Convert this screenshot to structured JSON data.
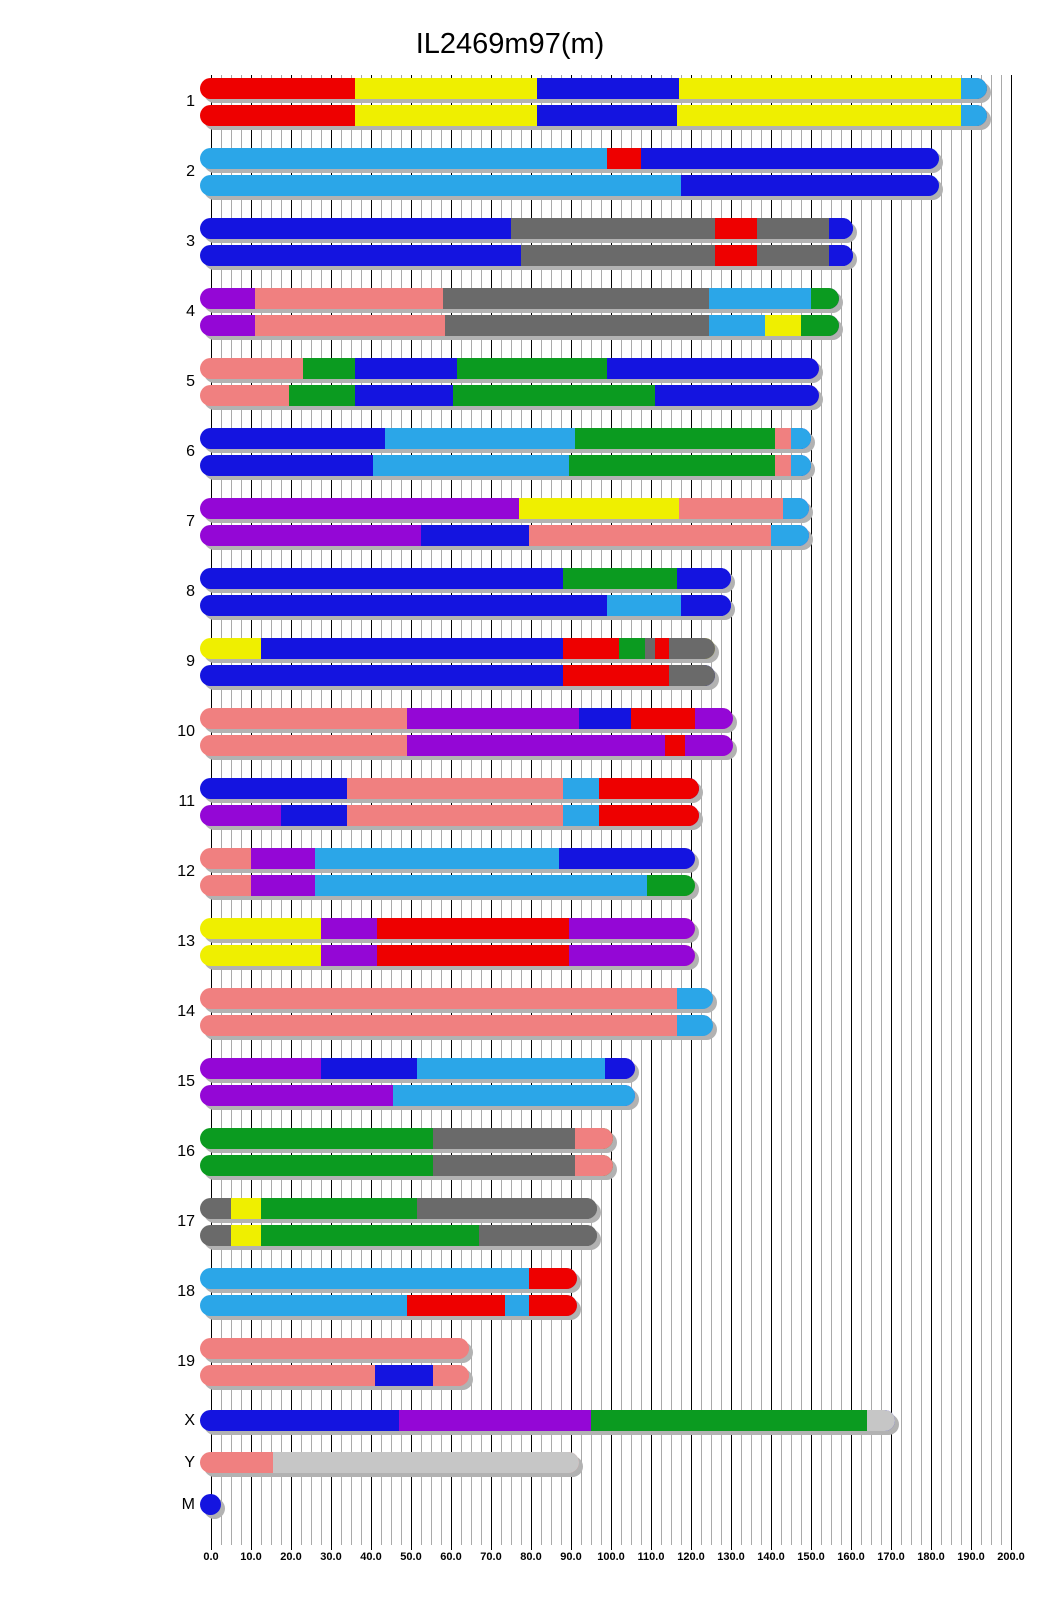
{
  "chart_data": {
    "type": "bar",
    "subtype": "chromosome-haplotype-painting",
    "title": "IL2469m97(m)",
    "xlabel": "",
    "ylabel": "",
    "unit": "Mb",
    "legend": "none",
    "grid": "on",
    "axis": {
      "min": 0,
      "max": 200,
      "major_step": 10,
      "minor_step": 2.5,
      "tick_labels": [
        "0.0",
        "10.0",
        "20.0",
        "30.0",
        "40.0",
        "50.0",
        "60.0",
        "70.0",
        "80.0",
        "90.0",
        "100.0",
        "110.0",
        "120.0",
        "130.0",
        "140.0",
        "150.0",
        "160.0",
        "170.0",
        "180.0",
        "190.0",
        "200.0"
      ]
    },
    "colors": {
      "red": "#EE0000",
      "yellow": "#EFEF00",
      "blue": "#1414E0",
      "lightblue": "#2BA6E8",
      "pink": "#F08080",
      "green": "#0B9B20",
      "gray": "#6A6A6A",
      "lightgray": "#C6C6C6",
      "purple": "#9407D6"
    },
    "chromosomes": [
      {
        "name": "1",
        "haplotypes": [
          [
            {
              "c": "red",
              "s": 0,
              "e": 36
            },
            {
              "c": "yellow",
              "s": 36,
              "e": 81.5
            },
            {
              "c": "blue",
              "s": 81.5,
              "e": 117
            },
            {
              "c": "yellow",
              "s": 117,
              "e": 187.5
            },
            {
              "c": "lightblue",
              "s": 187.5,
              "e": 194
            }
          ],
          [
            {
              "c": "red",
              "s": 0,
              "e": 36
            },
            {
              "c": "yellow",
              "s": 36,
              "e": 81.5
            },
            {
              "c": "blue",
              "s": 81.5,
              "e": 116.5
            },
            {
              "c": "yellow",
              "s": 116.5,
              "e": 187.5
            },
            {
              "c": "lightblue",
              "s": 187.5,
              "e": 194
            }
          ]
        ]
      },
      {
        "name": "2",
        "haplotypes": [
          [
            {
              "c": "lightblue",
              "s": 0,
              "e": 99
            },
            {
              "c": "red",
              "s": 99,
              "e": 107.5
            },
            {
              "c": "blue",
              "s": 107.5,
              "e": 182
            }
          ],
          [
            {
              "c": "lightblue",
              "s": 0,
              "e": 117.5
            },
            {
              "c": "blue",
              "s": 117.5,
              "e": 182
            }
          ]
        ]
      },
      {
        "name": "3",
        "haplotypes": [
          [
            {
              "c": "blue",
              "s": 0,
              "e": 75
            },
            {
              "c": "gray",
              "s": 75,
              "e": 126
            },
            {
              "c": "red",
              "s": 126,
              "e": 136.5
            },
            {
              "c": "gray",
              "s": 136.5,
              "e": 154.5
            },
            {
              "c": "blue",
              "s": 154.5,
              "e": 160.5
            }
          ],
          [
            {
              "c": "blue",
              "s": 0,
              "e": 77.5
            },
            {
              "c": "gray",
              "s": 77.5,
              "e": 126
            },
            {
              "c": "red",
              "s": 126,
              "e": 136.5
            },
            {
              "c": "gray",
              "s": 136.5,
              "e": 154.5
            },
            {
              "c": "blue",
              "s": 154.5,
              "e": 160.5
            }
          ]
        ]
      },
      {
        "name": "4",
        "haplotypes": [
          [
            {
              "c": "purple",
              "s": 0,
              "e": 11
            },
            {
              "c": "pink",
              "s": 11,
              "e": 58
            },
            {
              "c": "gray",
              "s": 58,
              "e": 124.5
            },
            {
              "c": "lightblue",
              "s": 124.5,
              "e": 150
            },
            {
              "c": "green",
              "s": 150,
              "e": 157
            }
          ],
          [
            {
              "c": "purple",
              "s": 0,
              "e": 11
            },
            {
              "c": "pink",
              "s": 11,
              "e": 58.5
            },
            {
              "c": "gray",
              "s": 58.5,
              "e": 124.5
            },
            {
              "c": "lightblue",
              "s": 124.5,
              "e": 138.5
            },
            {
              "c": "yellow",
              "s": 138.5,
              "e": 147.5
            },
            {
              "c": "green",
              "s": 147.5,
              "e": 157
            }
          ]
        ]
      },
      {
        "name": "5",
        "haplotypes": [
          [
            {
              "c": "pink",
              "s": 0,
              "e": 23
            },
            {
              "c": "green",
              "s": 23,
              "e": 36
            },
            {
              "c": "blue",
              "s": 36,
              "e": 61.5
            },
            {
              "c": "green",
              "s": 61.5,
              "e": 99
            },
            {
              "c": "blue",
              "s": 99,
              "e": 152
            }
          ],
          [
            {
              "c": "pink",
              "s": 0,
              "e": 19.5
            },
            {
              "c": "green",
              "s": 19.5,
              "e": 36
            },
            {
              "c": "blue",
              "s": 36,
              "e": 60.5
            },
            {
              "c": "green",
              "s": 60.5,
              "e": 111
            },
            {
              "c": "blue",
              "s": 111,
              "e": 152
            }
          ]
        ]
      },
      {
        "name": "6",
        "haplotypes": [
          [
            {
              "c": "blue",
              "s": 0,
              "e": 43.5
            },
            {
              "c": "lightblue",
              "s": 43.5,
              "e": 91
            },
            {
              "c": "green",
              "s": 91,
              "e": 141
            },
            {
              "c": "pink",
              "s": 141,
              "e": 145
            },
            {
              "c": "lightblue",
              "s": 145,
              "e": 150
            }
          ],
          [
            {
              "c": "blue",
              "s": 0,
              "e": 40.5
            },
            {
              "c": "lightblue",
              "s": 40.5,
              "e": 89.5
            },
            {
              "c": "green",
              "s": 89.5,
              "e": 141
            },
            {
              "c": "pink",
              "s": 141,
              "e": 145
            },
            {
              "c": "lightblue",
              "s": 145,
              "e": 150
            }
          ]
        ]
      },
      {
        "name": "7",
        "haplotypes": [
          [
            {
              "c": "purple",
              "s": 0,
              "e": 77
            },
            {
              "c": "yellow",
              "s": 77,
              "e": 117
            },
            {
              "c": "pink",
              "s": 117,
              "e": 143
            },
            {
              "c": "lightblue",
              "s": 143,
              "e": 149.5
            }
          ],
          [
            {
              "c": "purple",
              "s": 0,
              "e": 52.5
            },
            {
              "c": "blue",
              "s": 52.5,
              "e": 79.5
            },
            {
              "c": "pink",
              "s": 79.5,
              "e": 140
            },
            {
              "c": "lightblue",
              "s": 140,
              "e": 149.5
            }
          ]
        ]
      },
      {
        "name": "8",
        "haplotypes": [
          [
            {
              "c": "blue",
              "s": 0,
              "e": 88
            },
            {
              "c": "green",
              "s": 88,
              "e": 116.5
            },
            {
              "c": "blue",
              "s": 116.5,
              "e": 130
            }
          ],
          [
            {
              "c": "blue",
              "s": 0,
              "e": 99
            },
            {
              "c": "lightblue",
              "s": 99,
              "e": 117.5
            },
            {
              "c": "blue",
              "s": 117.5,
              "e": 130
            }
          ]
        ]
      },
      {
        "name": "9",
        "haplotypes": [
          [
            {
              "c": "yellow",
              "s": 0,
              "e": 12.5
            },
            {
              "c": "blue",
              "s": 12.5,
              "e": 88
            },
            {
              "c": "red",
              "s": 88,
              "e": 102
            },
            {
              "c": "green",
              "s": 102,
              "e": 108.5
            },
            {
              "c": "gray",
              "s": 108.5,
              "e": 111
            },
            {
              "c": "red",
              "s": 111,
              "e": 114.5
            },
            {
              "c": "gray",
              "s": 114.5,
              "e": 126
            }
          ],
          [
            {
              "c": "blue",
              "s": 0,
              "e": 88
            },
            {
              "c": "red",
              "s": 88,
              "e": 114.5
            },
            {
              "c": "gray",
              "s": 114.5,
              "e": 126
            }
          ]
        ]
      },
      {
        "name": "10",
        "haplotypes": [
          [
            {
              "c": "pink",
              "s": 0,
              "e": 49
            },
            {
              "c": "purple",
              "s": 49,
              "e": 92
            },
            {
              "c": "blue",
              "s": 92,
              "e": 105
            },
            {
              "c": "red",
              "s": 105,
              "e": 121
            },
            {
              "c": "purple",
              "s": 121,
              "e": 130.5
            }
          ],
          [
            {
              "c": "pink",
              "s": 0,
              "e": 49
            },
            {
              "c": "purple",
              "s": 49,
              "e": 113.5
            },
            {
              "c": "red",
              "s": 113.5,
              "e": 118.5
            },
            {
              "c": "purple",
              "s": 118.5,
              "e": 130.5
            }
          ]
        ]
      },
      {
        "name": "11",
        "haplotypes": [
          [
            {
              "c": "blue",
              "s": 0,
              "e": 34
            },
            {
              "c": "pink",
              "s": 34,
              "e": 88
            },
            {
              "c": "lightblue",
              "s": 88,
              "e": 97
            },
            {
              "c": "red",
              "s": 97,
              "e": 122
            }
          ],
          [
            {
              "c": "purple",
              "s": 0,
              "e": 17.5
            },
            {
              "c": "blue",
              "s": 17.5,
              "e": 34
            },
            {
              "c": "pink",
              "s": 34,
              "e": 88
            },
            {
              "c": "lightblue",
              "s": 88,
              "e": 97
            },
            {
              "c": "red",
              "s": 97,
              "e": 122
            }
          ]
        ]
      },
      {
        "name": "12",
        "haplotypes": [
          [
            {
              "c": "pink",
              "s": 0,
              "e": 10
            },
            {
              "c": "purple",
              "s": 10,
              "e": 26
            },
            {
              "c": "lightblue",
              "s": 26,
              "e": 87
            },
            {
              "c": "blue",
              "s": 87,
              "e": 121
            }
          ],
          [
            {
              "c": "pink",
              "s": 0,
              "e": 10
            },
            {
              "c": "purple",
              "s": 10,
              "e": 26
            },
            {
              "c": "lightblue",
              "s": 26,
              "e": 109
            },
            {
              "c": "green",
              "s": 109,
              "e": 121
            }
          ]
        ]
      },
      {
        "name": "13",
        "haplotypes": [
          [
            {
              "c": "yellow",
              "s": 0,
              "e": 27.5
            },
            {
              "c": "purple",
              "s": 27.5,
              "e": 41.5
            },
            {
              "c": "red",
              "s": 41.5,
              "e": 89.5
            },
            {
              "c": "purple",
              "s": 89.5,
              "e": 121
            }
          ],
          [
            {
              "c": "yellow",
              "s": 0,
              "e": 27.5
            },
            {
              "c": "purple",
              "s": 27.5,
              "e": 41.5
            },
            {
              "c": "red",
              "s": 41.5,
              "e": 89.5
            },
            {
              "c": "purple",
              "s": 89.5,
              "e": 121
            }
          ]
        ]
      },
      {
        "name": "14",
        "haplotypes": [
          [
            {
              "c": "pink",
              "s": 0,
              "e": 116.5
            },
            {
              "c": "lightblue",
              "s": 116.5,
              "e": 125.5
            }
          ],
          [
            {
              "c": "pink",
              "s": 0,
              "e": 116.5
            },
            {
              "c": "lightblue",
              "s": 116.5,
              "e": 125.5
            }
          ]
        ]
      },
      {
        "name": "15",
        "haplotypes": [
          [
            {
              "c": "purple",
              "s": 0,
              "e": 27.5
            },
            {
              "c": "blue",
              "s": 27.5,
              "e": 51.5
            },
            {
              "c": "lightblue",
              "s": 51.5,
              "e": 98.5
            },
            {
              "c": "blue",
              "s": 98.5,
              "e": 106
            }
          ],
          [
            {
              "c": "purple",
              "s": 0,
              "e": 45.5
            },
            {
              "c": "lightblue",
              "s": 45.5,
              "e": 106
            }
          ]
        ]
      },
      {
        "name": "16",
        "haplotypes": [
          [
            {
              "c": "green",
              "s": 0,
              "e": 55.5
            },
            {
              "c": "gray",
              "s": 55.5,
              "e": 91
            },
            {
              "c": "pink",
              "s": 91,
              "e": 100.5
            }
          ],
          [
            {
              "c": "green",
              "s": 0,
              "e": 55.5
            },
            {
              "c": "gray",
              "s": 55.5,
              "e": 91
            },
            {
              "c": "pink",
              "s": 91,
              "e": 100.5
            }
          ]
        ]
      },
      {
        "name": "17",
        "haplotypes": [
          [
            {
              "c": "gray",
              "s": 0,
              "e": 5
            },
            {
              "c": "yellow",
              "s": 5,
              "e": 12.5
            },
            {
              "c": "green",
              "s": 12.5,
              "e": 51.5
            },
            {
              "c": "gray",
              "s": 51.5,
              "e": 96.5
            }
          ],
          [
            {
              "c": "gray",
              "s": 0,
              "e": 5
            },
            {
              "c": "yellow",
              "s": 5,
              "e": 12.5
            },
            {
              "c": "green",
              "s": 12.5,
              "e": 67
            },
            {
              "c": "gray",
              "s": 67,
              "e": 96.5
            }
          ]
        ]
      },
      {
        "name": "18",
        "haplotypes": [
          [
            {
              "c": "lightblue",
              "s": 0,
              "e": 79.5
            },
            {
              "c": "red",
              "s": 79.5,
              "e": 91.5
            }
          ],
          [
            {
              "c": "lightblue",
              "s": 0,
              "e": 49
            },
            {
              "c": "red",
              "s": 49,
              "e": 73.5
            },
            {
              "c": "lightblue",
              "s": 73.5,
              "e": 79.5
            },
            {
              "c": "red",
              "s": 79.5,
              "e": 91.5
            }
          ]
        ]
      },
      {
        "name": "19",
        "haplotypes": [
          [
            {
              "c": "pink",
              "s": 0,
              "e": 64.5
            }
          ],
          [
            {
              "c": "pink",
              "s": 0,
              "e": 41
            },
            {
              "c": "blue",
              "s": 41,
              "e": 55.5
            },
            {
              "c": "pink",
              "s": 55.5,
              "e": 64.5
            }
          ]
        ]
      },
      {
        "name": "X",
        "haplotypes": [
          [
            {
              "c": "blue",
              "s": 0,
              "e": 47
            },
            {
              "c": "purple",
              "s": 47,
              "e": 95
            },
            {
              "c": "green",
              "s": 95,
              "e": 164
            },
            {
              "c": "lightgray",
              "s": 164,
              "e": 171
            }
          ]
        ]
      },
      {
        "name": "Y",
        "haplotypes": [
          [
            {
              "c": "pink",
              "s": 0,
              "e": 15.5
            },
            {
              "c": "lightgray",
              "s": 15.5,
              "e": 92
            }
          ]
        ]
      },
      {
        "name": "M",
        "shape": "dot",
        "haplotypes": [
          [
            {
              "c": "blue",
              "s": 0,
              "e": 5
            }
          ]
        ]
      }
    ]
  }
}
